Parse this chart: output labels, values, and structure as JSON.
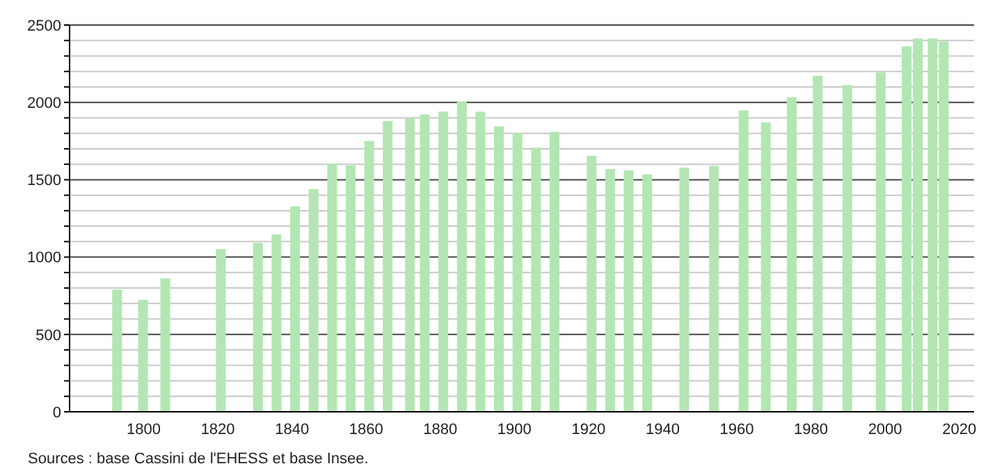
{
  "chart_data": {
    "type": "bar",
    "x": [
      1793,
      1800,
      1806,
      1821,
      1831,
      1836,
      1841,
      1846,
      1851,
      1856,
      1861,
      1866,
      1872,
      1876,
      1881,
      1886,
      1891,
      1896,
      1901,
      1906,
      1911,
      1921,
      1926,
      1931,
      1936,
      1946,
      1954,
      1962,
      1968,
      1975,
      1982,
      1990,
      1999,
      2006,
      2009,
      2013,
      2016
    ],
    "values": [
      790,
      724,
      862,
      1052,
      1092,
      1147,
      1328,
      1440,
      1603,
      1592,
      1750,
      1879,
      1897,
      1922,
      1940,
      2006,
      1940,
      1845,
      1802,
      1707,
      1810,
      1655,
      1569,
      1560,
      1534,
      1578,
      1589,
      1948,
      1871,
      2034,
      2172,
      2112,
      2193,
      2362,
      2414,
      2414,
      2394
    ],
    "color": "#b3e6b3",
    "xlim": [
      1780,
      2024
    ],
    "xticks": [
      1800,
      1820,
      1840,
      1860,
      1880,
      1900,
      1920,
      1940,
      1960,
      1980,
      2000,
      2020
    ],
    "ylim": [
      0,
      2500
    ],
    "yticks": [
      0,
      {
        "value": 100,
        "label": null
      },
      {
        "value": 200,
        "label": null
      },
      {
        "value": 300,
        "label": null
      },
      {
        "value": 400,
        "label": null
      },
      500,
      {
        "value": 600,
        "label": null
      },
      {
        "value": 700,
        "label": null
      },
      {
        "value": 800,
        "label": null
      },
      {
        "value": 900,
        "label": null
      },
      1000,
      {
        "value": 1100,
        "label": null
      },
      {
        "value": 1200,
        "label": null
      },
      {
        "value": 1300,
        "label": null
      },
      {
        "value": 1400,
        "label": null
      },
      1500,
      {
        "value": 1600,
        "label": null
      },
      {
        "value": 1700,
        "label": null
      },
      {
        "value": 1800,
        "label": null
      },
      {
        "value": 1900,
        "label": null
      },
      2000,
      {
        "value": 2100,
        "label": null
      },
      {
        "value": 2200,
        "label": null
      },
      {
        "value": 2300,
        "label": null
      },
      {
        "value": 2400,
        "label": null
      },
      2500
    ],
    "grid": "y",
    "annotations": [
      "Sources : base Cassini de l'EHESS et base Insee."
    ]
  }
}
